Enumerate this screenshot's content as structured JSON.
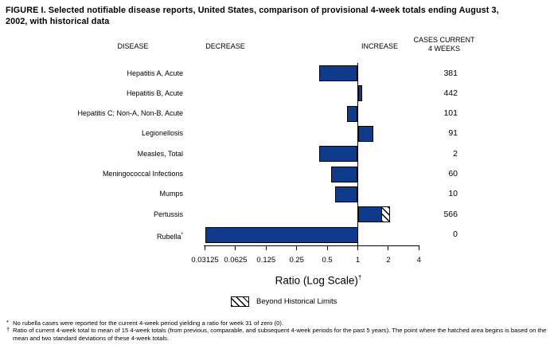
{
  "title": "FIGURE I. Selected notifiable disease reports, United States, comparison of provisional 4-week totals ending August 3, 2002, with historical data",
  "columns": {
    "disease": "DISEASE",
    "decrease": "DECREASE",
    "increase": "INCREASE",
    "cases_line1": "CASES CURRENT",
    "cases_line2": "4 WEEKS"
  },
  "chart_data": {
    "type": "bar",
    "orientation": "horizontal",
    "scale": "log2",
    "title": "Selected notifiable disease reports, ratio of current 4-week total to historical mean",
    "xlabel": "Ratio (Log Scale)",
    "xlabel_superscript": "†",
    "axis": {
      "min": 0.03125,
      "max": 4,
      "baseline": 1,
      "ticks": [
        0.03125,
        0.0625,
        0.125,
        0.25,
        0.5,
        1,
        2,
        4
      ],
      "tick_labels": [
        "0.03125",
        "0.0625",
        "0.125",
        "0.25",
        "0.5",
        "1",
        "2",
        "4"
      ]
    },
    "rows": [
      {
        "disease": "Hepatitis A, Acute",
        "superscript": "",
        "ratio": 0.42,
        "cases": 381
      },
      {
        "disease": "Hepatitis B, Acute",
        "superscript": "",
        "ratio": 1.1,
        "cases": 442
      },
      {
        "disease": "Hepatitis C; Non-A, Non-B, Acute",
        "superscript": "",
        "ratio": 0.79,
        "cases": 101
      },
      {
        "disease": "Legionellosis",
        "superscript": "",
        "ratio": 1.42,
        "cases": 91
      },
      {
        "disease": "Measles, Total",
        "superscript": "",
        "ratio": 0.42,
        "cases": 2
      },
      {
        "disease": "Meningococcal Infections",
        "superscript": "",
        "ratio": 0.55,
        "cases": 60
      },
      {
        "disease": "Mumps",
        "superscript": "",
        "ratio": 0.6,
        "cases": 10
      },
      {
        "disease": "Pertussis",
        "superscript": "",
        "ratio": 2.06,
        "cases": 566,
        "beyond_limits_start": 1.66
      },
      {
        "disease": "Rubella",
        "superscript": "*",
        "ratio": 0,
        "cases": 0
      }
    ],
    "legend": {
      "label": "Beyond Historical Limits",
      "style": "hatched"
    }
  },
  "footnotes": [
    {
      "marker": "*",
      "text": "No rubella cases were reported for the current 4-week period yielding a ratio for week 31 of zero (0)."
    },
    {
      "marker": "†",
      "text": "Ratio of current 4-week total to mean of 15 4-week totals (from previous, comparable, and subsequent 4-week periods for the past 5 years). The point where the hatched area begins is based on the mean and two standard deviations of these 4-week totals."
    }
  ],
  "colors": {
    "bar": "#0E3B8C",
    "bar_border": "#000000",
    "background": "#FFFFFF",
    "text": "#000000"
  }
}
